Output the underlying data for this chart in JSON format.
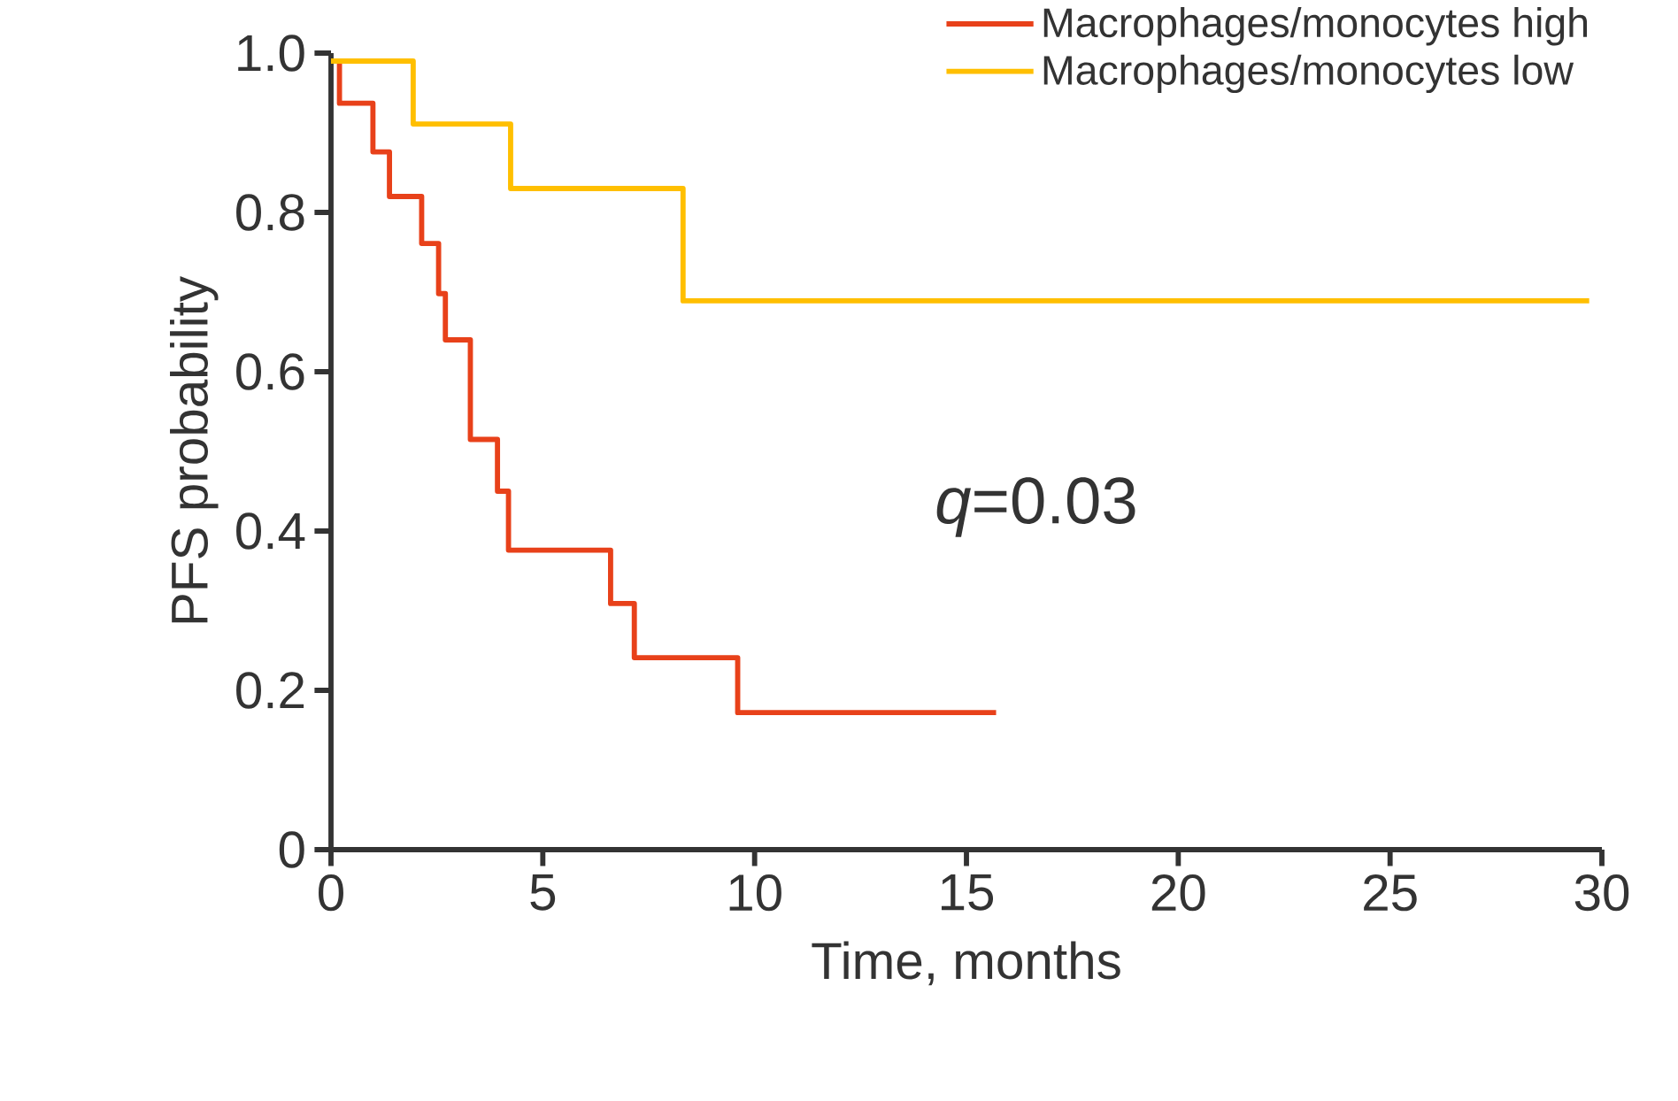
{
  "chart_data": {
    "type": "step",
    "xlabel": "Time, months",
    "ylabel": "PFS probability",
    "xlim": [
      0,
      30
    ],
    "ylim": [
      0,
      1
    ],
    "xticks": [
      0,
      5,
      10,
      15,
      20,
      25,
      30
    ],
    "yticks": [
      0,
      0.2,
      0.4,
      0.6,
      0.8,
      {
        "value": 1,
        "label": "1.0"
      }
    ],
    "legend": "top right",
    "annotations": [
      "*q*=0.03"
    ],
    "series": [
      {
        "name": "Macrophages/monocytes high",
        "color": "#e8411a",
        "x": [
          0,
          0.2,
          0.99,
          1.38,
          2.14,
          2.54,
          2.7,
          3.29,
          3.93,
          4.19,
          6.6,
          7.16,
          9.6,
          15.7
        ],
        "values": [
          0.99,
          0.937,
          0.876,
          0.82,
          0.761,
          0.698,
          0.64,
          0.515,
          0.45,
          0.376,
          0.309,
          0.241,
          0.172,
          0.172
        ]
      },
      {
        "name": "Macrophages/monocytes low",
        "color": "#ffbf00",
        "x": [
          0,
          1.94,
          4.24,
          8.31,
          29.7
        ],
        "values": [
          0.99,
          0.911,
          0.83,
          0.689,
          0.689
        ]
      }
    ]
  }
}
